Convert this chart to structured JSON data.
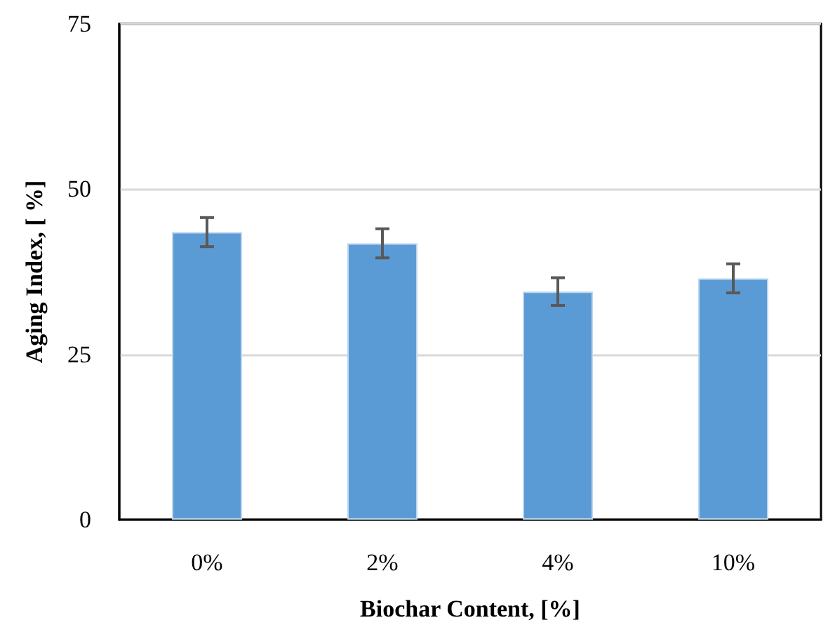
{
  "chart_data": {
    "type": "bar",
    "xlabel": "Biochar Content, [%]",
    "ylabel": "Aging Index, [ %]",
    "categories": [
      "0%",
      "2%",
      "4%",
      "10%"
    ],
    "values": [
      43.5,
      41.8,
      34.5,
      36.5
    ],
    "color": "#5b9bd5",
    "errors": [
      2.2,
      2.2,
      2.1,
      2.2
    ],
    "ylim": [
      0,
      75
    ],
    "yticks": [
      0,
      25,
      50,
      75
    ],
    "grid": "y"
  }
}
